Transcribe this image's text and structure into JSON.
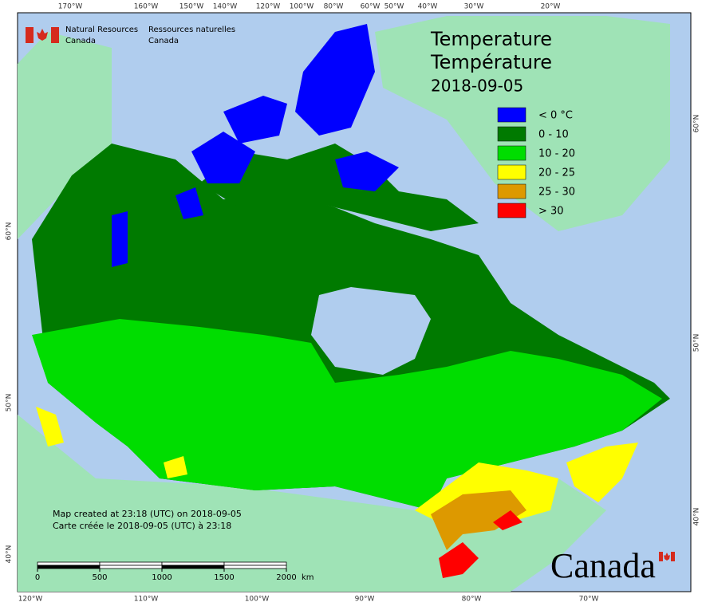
{
  "header": {
    "department_en": [
      "Natural Resources",
      "Canada"
    ],
    "department_fr": [
      "Ressources naturelles",
      "Canada"
    ]
  },
  "title": [
    "Temperature",
    "Température"
  ],
  "date": "2018-09-05",
  "legend": [
    {
      "label": "< 0 °C",
      "color": "#0000ff"
    },
    {
      "label": "0 - 10",
      "color": "#007a00"
    },
    {
      "label": "10 - 20",
      "color": "#00dd00"
    },
    {
      "label": "20 - 25",
      "color": "#ffff00"
    },
    {
      "label": "25 - 30",
      "color": "#dd9900"
    },
    {
      "label": "> 30",
      "color": "#ff0000"
    }
  ],
  "notes": [
    "Map created at 23:18 (UTC) on 2018-09-05",
    "Carte créée le 2018-09-05 (UTC) à 23:18"
  ],
  "scale": {
    "ticks": [
      0,
      500,
      1000,
      1500,
      2000
    ],
    "unit": "km"
  },
  "graticule": {
    "top": [
      "170°W",
      "160°W",
      "150°W",
      "140°W",
      "120°W",
      "100°W",
      "80°W",
      "60°W",
      "50°W",
      "40°W",
      "30°W",
      "20°W"
    ],
    "bottom": [
      "120°W",
      "110°W",
      "100°W",
      "90°W",
      "80°W",
      "70°W"
    ],
    "left": [
      "60°N",
      "50°N",
      "40°N"
    ],
    "right": [
      "60°N",
      "50°N",
      "40°N"
    ]
  },
  "wordmark": "Canada"
}
